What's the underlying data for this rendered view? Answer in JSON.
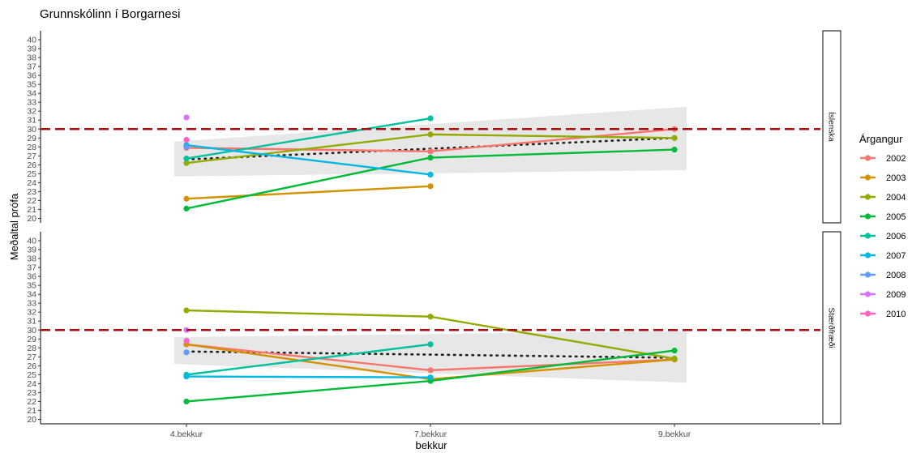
{
  "chart_data": {
    "type": "line",
    "title": "Grunnskólinn í Borgarnesi",
    "xlabel": "bekkur",
    "ylabel": "Meðaltal prófa",
    "categories": [
      "4.bekkur",
      "7.bekkur",
      "9.bekkur"
    ],
    "ylim": [
      19.5,
      41
    ],
    "yticks": [
      20,
      21,
      22,
      23,
      24,
      25,
      26,
      27,
      28,
      29,
      30,
      31,
      32,
      33,
      34,
      35,
      36,
      37,
      38,
      39,
      40
    ],
    "reference_line": 30,
    "legend": {
      "title": "Árgangur",
      "placement": "right",
      "entries": [
        {
          "name": "2002",
          "color": "#F8766D"
        },
        {
          "name": "2003",
          "color": "#D39200"
        },
        {
          "name": "2004",
          "color": "#93AA00"
        },
        {
          "name": "2005",
          "color": "#00BA38"
        },
        {
          "name": "2006",
          "color": "#00C19F"
        },
        {
          "name": "2007",
          "color": "#00B9E3"
        },
        {
          "name": "2008",
          "color": "#619CFF"
        },
        {
          "name": "2009",
          "color": "#DB72FB"
        },
        {
          "name": "2010",
          "color": "#FF61C3"
        }
      ]
    },
    "panels": [
      {
        "label": "Íslenska",
        "trend": {
          "x": [
            0,
            2
          ],
          "y": [
            26.6,
            29.0
          ],
          "ribbon_x": [
            -0.05,
            2.05
          ],
          "ribbon_lower": [
            24.7,
            25.4
          ],
          "ribbon_upper": [
            28.6,
            32.5
          ]
        },
        "series": [
          {
            "name": "2002",
            "points": [
              [
                0,
                27.9
              ],
              [
                1,
                27.5
              ],
              [
                2,
                30.0
              ]
            ]
          },
          {
            "name": "2003",
            "points": [
              [
                0,
                22.2
              ],
              [
                1,
                23.6
              ]
            ]
          },
          {
            "name": "2004",
            "points": [
              [
                0,
                26.2
              ],
              [
                1,
                29.4
              ],
              [
                2,
                29.0
              ]
            ]
          },
          {
            "name": "2005",
            "points": [
              [
                0,
                21.1
              ],
              [
                1,
                26.8
              ],
              [
                2,
                27.7
              ]
            ]
          },
          {
            "name": "2006",
            "points": [
              [
                0,
                26.7
              ],
              [
                1,
                31.2
              ]
            ]
          },
          {
            "name": "2007",
            "points": [
              [
                0,
                28.2
              ],
              [
                1,
                24.9
              ]
            ]
          },
          {
            "name": "2008",
            "points": [
              [
                0,
                28.0
              ]
            ]
          },
          {
            "name": "2009",
            "points": [
              [
                0,
                31.3
              ]
            ]
          },
          {
            "name": "2010",
            "points": [
              [
                0,
                28.8
              ]
            ]
          }
        ]
      },
      {
        "label": "Stærðfræði",
        "trend": {
          "x": [
            0,
            2
          ],
          "y": [
            27.6,
            26.9
          ],
          "ribbon_x": [
            -0.05,
            2.05
          ],
          "ribbon_lower": [
            26.2,
            24.1
          ],
          "ribbon_upper": [
            29.2,
            29.9
          ]
        },
        "series": [
          {
            "name": "2002",
            "points": [
              [
                0,
                28.4
              ],
              [
                1,
                25.5
              ],
              [
                2,
                26.7
              ]
            ]
          },
          {
            "name": "2003",
            "points": [
              [
                0,
                28.4
              ],
              [
                1,
                24.5
              ],
              [
                2,
                26.7
              ]
            ]
          },
          {
            "name": "2004",
            "points": [
              [
                0,
                32.2
              ],
              [
                1,
                31.5
              ],
              [
                2,
                26.8
              ]
            ]
          },
          {
            "name": "2005",
            "points": [
              [
                0,
                22.0
              ],
              [
                1,
                24.3
              ],
              [
                2,
                27.7
              ]
            ]
          },
          {
            "name": "2006",
            "points": [
              [
                0,
                25.0
              ],
              [
                1,
                28.4
              ]
            ]
          },
          {
            "name": "2007",
            "points": [
              [
                0,
                24.8
              ],
              [
                1,
                24.7
              ]
            ]
          },
          {
            "name": "2008",
            "points": [
              [
                0,
                27.5
              ]
            ]
          },
          {
            "name": "2009",
            "points": [
              [
                0,
                30.0
              ]
            ]
          },
          {
            "name": "2010",
            "points": [
              [
                0,
                28.8
              ]
            ]
          }
        ]
      }
    ]
  }
}
